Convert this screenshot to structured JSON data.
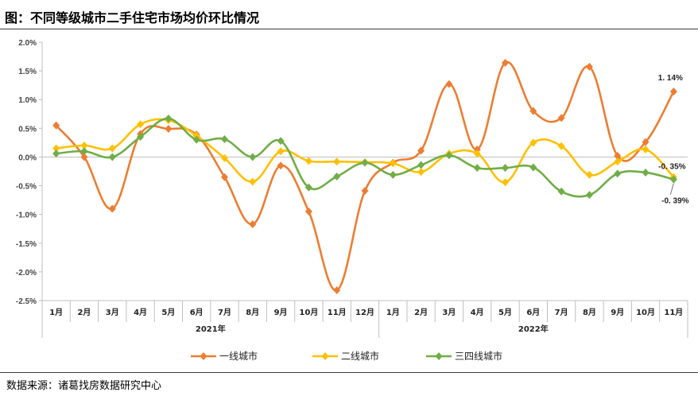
{
  "title": "图：不同等级城市二手住宅市场均价环比情况",
  "source": "数据来源：诸葛找房数据研究中心",
  "chart_data": {
    "type": "line",
    "categories": [
      "1月",
      "2月",
      "3月",
      "4月",
      "5月",
      "6月",
      "7月",
      "8月",
      "9月",
      "10月",
      "11月",
      "12月",
      "1月",
      "2月",
      "3月",
      "4月",
      "5月",
      "6月",
      "7月",
      "8月",
      "9月",
      "10月",
      "11月"
    ],
    "years": [
      {
        "label": "2021年",
        "from": 0,
        "to": 11
      },
      {
        "label": "2022年",
        "from": 12,
        "to": 22
      }
    ],
    "yticks": [
      {
        "v": 2.0,
        "label": "2.0%"
      },
      {
        "v": 1.5,
        "label": "1.5%"
      },
      {
        "v": 1.0,
        "label": "1.0%"
      },
      {
        "v": 0.5,
        "label": "0.5%"
      },
      {
        "v": 0.0,
        "label": "0.0%"
      },
      {
        "v": -0.5,
        "label": "-0.5%"
      },
      {
        "v": -1.0,
        "label": "-1.0%"
      },
      {
        "v": -1.5,
        "label": "-1.5%"
      },
      {
        "v": -2.0,
        "label": "-2.0%"
      },
      {
        "v": -2.5,
        "label": "-2.5%"
      }
    ],
    "ylim": [
      -2.5,
      2.0
    ],
    "legend_position": "bottom",
    "series": [
      {
        "name": "一线城市",
        "color": "#ED7D31",
        "values": [
          0.55,
          0.0,
          -0.9,
          0.4,
          0.49,
          0.39,
          -0.35,
          -1.17,
          -0.15,
          -0.95,
          -2.32,
          -0.59,
          -0.1,
          0.11,
          1.27,
          0.13,
          1.64,
          0.8,
          0.68,
          1.57,
          0.02,
          0.26,
          1.14
        ]
      },
      {
        "name": "二线城市",
        "color": "#FFC000",
        "values": [
          0.15,
          0.2,
          0.15,
          0.57,
          0.64,
          0.37,
          -0.02,
          -0.43,
          0.1,
          -0.07,
          -0.08,
          -0.09,
          -0.11,
          -0.26,
          0.06,
          0.06,
          -0.44,
          0.25,
          0.19,
          -0.31,
          -0.08,
          0.13,
          -0.35
        ]
      },
      {
        "name": "三四线城市",
        "color": "#70AD47",
        "values": [
          0.06,
          0.1,
          0.0,
          0.35,
          0.67,
          0.3,
          0.31,
          0.0,
          0.28,
          -0.53,
          -0.34,
          -0.1,
          -0.31,
          -0.14,
          0.03,
          -0.19,
          -0.19,
          -0.18,
          -0.6,
          -0.66,
          -0.29,
          -0.27,
          -0.39
        ]
      }
    ],
    "data_labels": [
      {
        "series": 0,
        "index": 22,
        "text": "1. 14%"
      },
      {
        "series": 1,
        "index": 22,
        "text": "-0. 35%"
      },
      {
        "series": 2,
        "index": 22,
        "text": "-0. 39%"
      }
    ]
  }
}
